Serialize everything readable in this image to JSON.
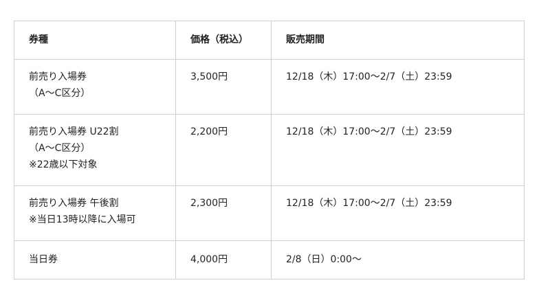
{
  "table": {
    "headers": [
      "券種",
      "価格（税込）",
      "販売期間"
    ],
    "rows": [
      {
        "type": [
          "前売り入場券",
          "（A〜C区分）"
        ],
        "price": "3,500円",
        "period": "12/18（木）17:00〜2/7（土）23:59"
      },
      {
        "type": [
          "前売り入場券 U22割",
          "（A〜C区分）",
          "※22歳以下対象"
        ],
        "price": "2,200円",
        "period": "12/18（木）17:00〜2/7（土）23:59"
      },
      {
        "type": [
          "前売り入場券 午後割",
          "※当日13時以降に入場可"
        ],
        "price": "2,300円",
        "period": "12/18（木）17:00〜2/7（土）23:59"
      },
      {
        "type": [
          "当日券"
        ],
        "price": "4,000円",
        "period": "2/8（日）0:00〜"
      }
    ]
  },
  "colors": {
    "border": "#cfcfcf",
    "text": "#222222"
  }
}
